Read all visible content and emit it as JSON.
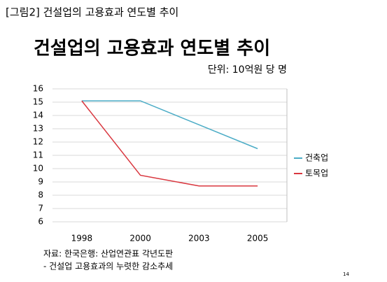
{
  "chart_data": {
    "type": "line",
    "caption": "[그림2] 건설업의 고용효과 연도별 추이",
    "title": "건설업의 고용효과 연도별 추이",
    "subtitle": "단위: 10억원 당 명",
    "categories": [
      "1998",
      "2000",
      "2003",
      "2005"
    ],
    "series": [
      {
        "name": "건축업",
        "color": "#4bacc6",
        "values": [
          15.1,
          15.1,
          13.3,
          11.5
        ]
      },
      {
        "name": "토목업",
        "color": "#d9373f",
        "values": [
          15.1,
          9.5,
          8.7,
          8.7
        ]
      }
    ],
    "ylim": [
      6,
      16
    ],
    "yticks": [
      6,
      7,
      8,
      9,
      10,
      11,
      12,
      13,
      14,
      15,
      16
    ],
    "grid": true,
    "legend": "right",
    "notes": [
      "자료: 한국은행: 산업연관표 각년도판",
      "- 건설업 고용효과의 누렷한 감소추세"
    ],
    "page_number": "14"
  }
}
